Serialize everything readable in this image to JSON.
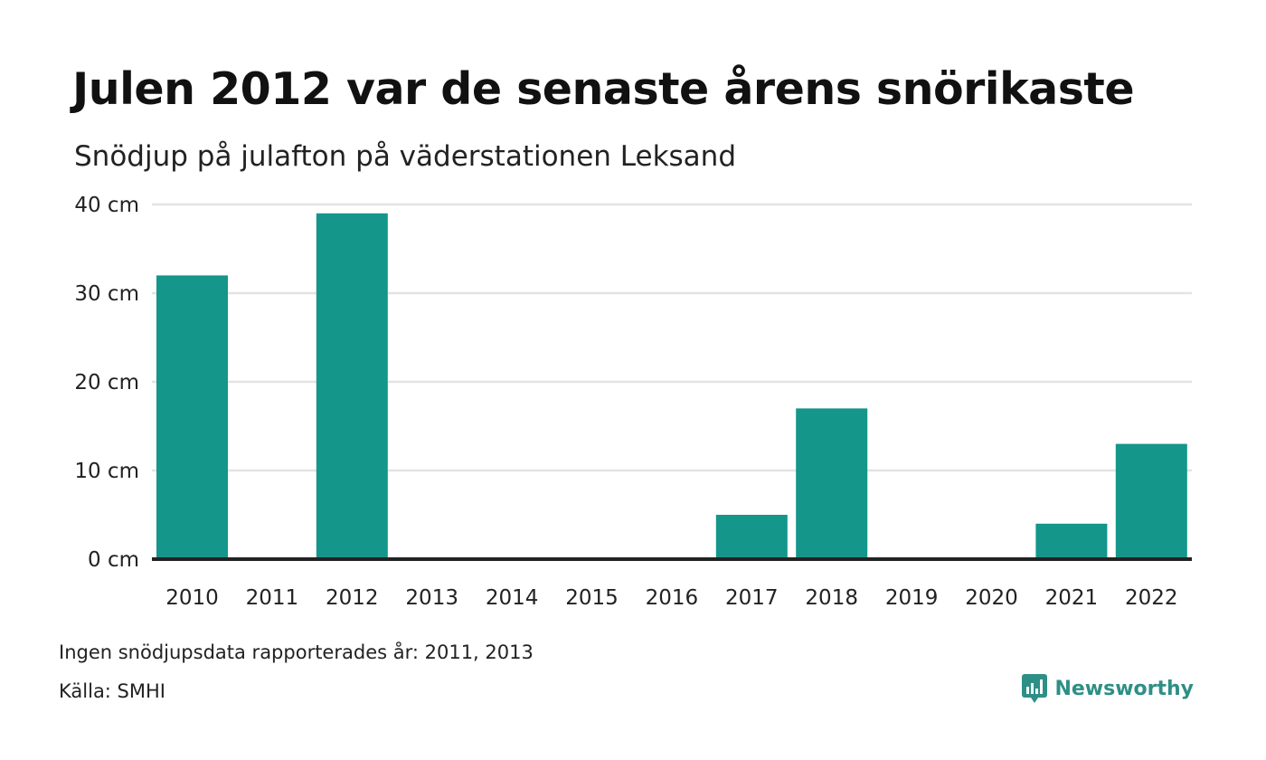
{
  "header": {
    "title": "Julen 2012 var de senaste årens snörikaste",
    "subtitle": "Snödjup på julafton på väderstationen Leksand"
  },
  "footer": {
    "note": "Ingen snödjupsdata rapporterades år: 2011, 2013",
    "source": "Källa: SMHI",
    "brand": "Newsworthy"
  },
  "colors": {
    "bar": "#14968a",
    "grid": "#e3e3e3",
    "baseline": "#222222",
    "brand": "#2e8f86"
  },
  "chart_data": {
    "type": "bar",
    "categories": [
      "2010",
      "2011",
      "2012",
      "2013",
      "2014",
      "2015",
      "2016",
      "2017",
      "2018",
      "2019",
      "2020",
      "2021",
      "2022"
    ],
    "values": [
      32,
      null,
      39,
      null,
      0,
      0,
      0,
      5,
      17,
      0,
      0,
      4,
      13
    ],
    "yticks": [
      0,
      10,
      20,
      30,
      40
    ],
    "ytick_labels": [
      "0 cm",
      "10 cm",
      "20 cm",
      "30 cm",
      "40 cm"
    ],
    "ylim": [
      0,
      40
    ],
    "grid": true
  }
}
